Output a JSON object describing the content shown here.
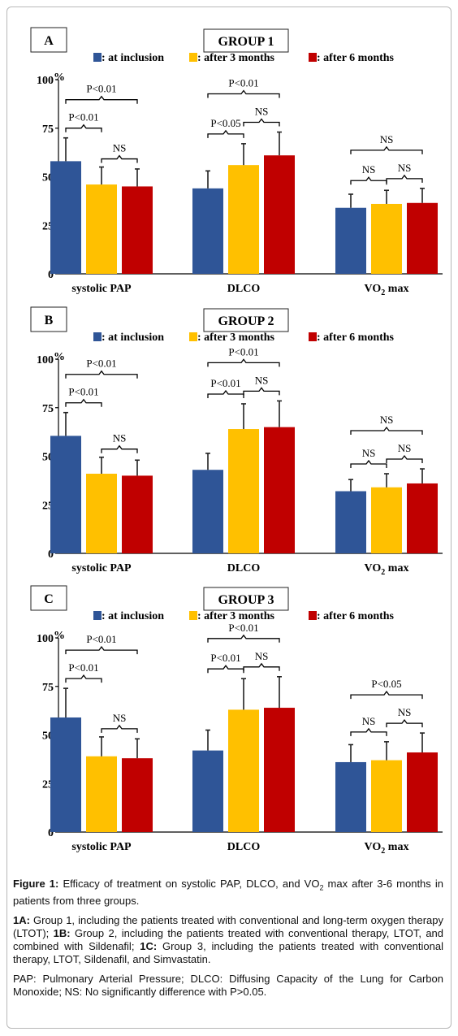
{
  "chart_data": [
    {
      "type": "bar",
      "panel": "A",
      "title": "GROUP 1",
      "ylabel": "%",
      "ylim": [
        0,
        100
      ],
      "yticks": [
        "0",
        "25",
        "50",
        "75",
        "100"
      ],
      "categories": [
        "systolic PAP",
        "DLCO",
        "VO2 max"
      ],
      "series": [
        {
          "name": ": at inclusion",
          "color": "#2F5597",
          "values": [
            58,
            44,
            34
          ],
          "errors": [
            12,
            9,
            7
          ]
        },
        {
          "name": ": after 3 months",
          "color": "#FFC000",
          "values": [
            46,
            56,
            36
          ],
          "errors": [
            9,
            11,
            7
          ]
        },
        {
          "name": ": after 6 months",
          "color": "#C00000",
          "values": [
            45,
            61,
            36.5
          ],
          "errors": [
            9,
            12,
            7.5
          ]
        }
      ],
      "annotations": [
        {
          "cat": 0,
          "from": 0,
          "to": 1,
          "level": 1,
          "text": "P<0.01"
        },
        {
          "cat": 0,
          "from": 1,
          "to": 2,
          "level": 0,
          "text": "NS"
        },
        {
          "cat": 0,
          "from": 0,
          "to": 2,
          "level": 2,
          "text": "P<0.01"
        },
        {
          "cat": 1,
          "from": 0,
          "to": 1,
          "level": 1,
          "text": "P<0.05"
        },
        {
          "cat": 1,
          "from": 1,
          "to": 2,
          "level": 1,
          "text": "NS"
        },
        {
          "cat": 1,
          "from": 0,
          "to": 2,
          "level": 2,
          "text": "P<0.01"
        },
        {
          "cat": 2,
          "from": 0,
          "to": 1,
          "level": 1,
          "text": "NS"
        },
        {
          "cat": 2,
          "from": 1,
          "to": 2,
          "level": 1,
          "text": "NS"
        },
        {
          "cat": 2,
          "from": 0,
          "to": 2,
          "level": 2,
          "text": "NS"
        }
      ]
    },
    {
      "type": "bar",
      "panel": "B",
      "title": "GROUP 2",
      "ylabel": "%",
      "ylim": [
        0,
        100
      ],
      "yticks": [
        "0",
        "25",
        "50",
        "75",
        "100"
      ],
      "categories": [
        "systolic PAP",
        "DLCO",
        "VO2 max"
      ],
      "series": [
        {
          "name": ": at inclusion",
          "color": "#2F5597",
          "values": [
            60.5,
            43,
            32
          ],
          "errors": [
            12,
            8.5,
            6
          ]
        },
        {
          "name": ": after 3 months",
          "color": "#FFC000",
          "values": [
            41,
            64,
            34
          ],
          "errors": [
            8.5,
            13,
            7
          ]
        },
        {
          "name": ": after 6 months",
          "color": "#C00000",
          "values": [
            40,
            65,
            36
          ],
          "errors": [
            8,
            13.5,
            7.5
          ]
        }
      ],
      "annotations": [
        {
          "cat": 0,
          "from": 0,
          "to": 1,
          "level": 1,
          "text": "P<0.01"
        },
        {
          "cat": 0,
          "from": 1,
          "to": 2,
          "level": 0,
          "text": "NS"
        },
        {
          "cat": 0,
          "from": 0,
          "to": 2,
          "level": 2,
          "text": "P<0.01"
        },
        {
          "cat": 1,
          "from": 0,
          "to": 1,
          "level": 1,
          "text": "P<0.01"
        },
        {
          "cat": 1,
          "from": 1,
          "to": 2,
          "level": 1,
          "text": "NS"
        },
        {
          "cat": 1,
          "from": 0,
          "to": 2,
          "level": 2,
          "text": "P<0.01"
        },
        {
          "cat": 2,
          "from": 0,
          "to": 1,
          "level": 1,
          "text": "NS"
        },
        {
          "cat": 2,
          "from": 1,
          "to": 2,
          "level": 1,
          "text": "NS"
        },
        {
          "cat": 2,
          "from": 0,
          "to": 2,
          "level": 2,
          "text": "NS"
        }
      ]
    },
    {
      "type": "bar",
      "panel": "C",
      "title": "GROUP 3",
      "ylabel": "%",
      "ylim": [
        0,
        100
      ],
      "yticks": [
        "0",
        "25",
        "50",
        "75",
        "100"
      ],
      "categories": [
        "systolic PAP",
        "DLCO",
        "VO2 max"
      ],
      "series": [
        {
          "name": ": at inclusion",
          "color": "#2F5597",
          "values": [
            59,
            42,
            36
          ],
          "errors": [
            15,
            10.5,
            9
          ]
        },
        {
          "name": ": after 3 months",
          "color": "#FFC000",
          "values": [
            39,
            63,
            37
          ],
          "errors": [
            10,
            16,
            9.5
          ]
        },
        {
          "name": ": after 6 months",
          "color": "#C00000",
          "values": [
            38,
            64,
            41
          ],
          "errors": [
            10,
            16,
            10
          ]
        }
      ],
      "annotations": [
        {
          "cat": 0,
          "from": 0,
          "to": 1,
          "level": 1,
          "text": "P<0.01"
        },
        {
          "cat": 0,
          "from": 1,
          "to": 2,
          "level": 0,
          "text": "NS"
        },
        {
          "cat": 0,
          "from": 0,
          "to": 2,
          "level": 2,
          "text": "P<0.01"
        },
        {
          "cat": 1,
          "from": 0,
          "to": 1,
          "level": 1,
          "text": "P<0.01"
        },
        {
          "cat": 1,
          "from": 1,
          "to": 2,
          "level": 1,
          "text": "NS"
        },
        {
          "cat": 1,
          "from": 0,
          "to": 2,
          "level": 2,
          "text": "P<0.01"
        },
        {
          "cat": 2,
          "from": 0,
          "to": 1,
          "level": 1,
          "text": "NS"
        },
        {
          "cat": 2,
          "from": 1,
          "to": 2,
          "level": 1,
          "text": "NS"
        },
        {
          "cat": 2,
          "from": 0,
          "to": 2,
          "level": 2,
          "text": "P<0.05"
        }
      ]
    }
  ],
  "caption": {
    "figure_label": "Figure 1:",
    "figure_text_pre": " Efficacy of treatment on systolic PAP, DLCO, and VO",
    "figure_sub": "2",
    "figure_text_post": " max after 3-6 months in patients from three groups.",
    "p1_1a_label": "1A:",
    "p1_1a_text": " Group 1, including the patients treated with conventional and long-term oxygen therapy (LTOT); ",
    "p1_1b_label": "1B:",
    "p1_1b_text": " Group 2, including the patients treated with conventional therapy, LTOT, and combined with Sildenafil; ",
    "p1_1c_label": "1C:",
    "p1_1c_text": " Group 3, including the patients treated with conventional therapy, LTOT, Sildenafil, and Simvastatin.",
    "abbreviations": "PAP: Pulmonary Arterial Pressure; DLCO: Diffusing Capacity of the Lung for Carbon Monoxide; NS: No significantly difference with P>0.05."
  }
}
